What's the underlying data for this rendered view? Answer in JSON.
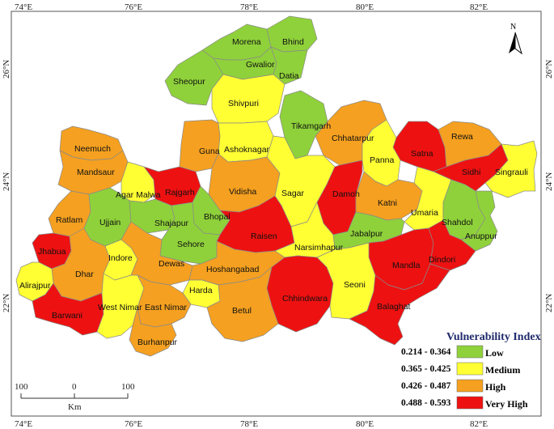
{
  "colors": {
    "low": "#8fd13a",
    "medium": "#ffff33",
    "high": "#f5a020",
    "very_high": "#ee1111"
  },
  "frame": {
    "top_ticks": [
      "74°E",
      "76°E",
      "78°E",
      "80°E",
      "82°E"
    ],
    "bottom_ticks": [
      "74°E",
      "76°E",
      "78°E",
      "80°E",
      "82°E"
    ],
    "left_ticks": [
      "26°N",
      "24°N",
      "22°N"
    ],
    "right_ticks": [
      "26°N",
      "24°N",
      "22°N"
    ]
  },
  "north_arrow": {
    "label": "N"
  },
  "legend": {
    "title": "Vulnerability Index",
    "items": [
      {
        "range": "0.214 - 0.364",
        "class": "Low",
        "color_key": "low"
      },
      {
        "range": "0.365 - 0.425",
        "class": "Medium",
        "color_key": "medium"
      },
      {
        "range": "0.426 - 0.487",
        "class": "High",
        "color_key": "high"
      },
      {
        "range": "0.488 - 0.593",
        "class": "Very High",
        "color_key": "very_high"
      }
    ]
  },
  "scale_bar": {
    "labels": [
      "100",
      "0",
      "100"
    ],
    "unit": "Km"
  },
  "districts": [
    {
      "name": "Morena",
      "class": "low"
    },
    {
      "name": "Bhind",
      "class": "low"
    },
    {
      "name": "Gwalior",
      "class": "low"
    },
    {
      "name": "Datia",
      "class": "low"
    },
    {
      "name": "Sheopur",
      "class": "low"
    },
    {
      "name": "Shivpuri",
      "class": "medium"
    },
    {
      "name": "Tikamgarh",
      "class": "low"
    },
    {
      "name": "Chhatarpur",
      "class": "high"
    },
    {
      "name": "Satna",
      "class": "very_high"
    },
    {
      "name": "Rewa",
      "class": "high"
    },
    {
      "name": "Sidhi",
      "class": "very_high"
    },
    {
      "name": "Singrauli",
      "class": "medium"
    },
    {
      "name": "Panna",
      "class": "medium"
    },
    {
      "name": "Neemuch",
      "class": "high"
    },
    {
      "name": "Mandsaur",
      "class": "high"
    },
    {
      "name": "Guna",
      "class": "high"
    },
    {
      "name": "Ashoknagar",
      "class": "medium"
    },
    {
      "name": "Agar Malwa",
      "class": "medium"
    },
    {
      "name": "Rajgarh",
      "class": "very_high"
    },
    {
      "name": "Vidisha",
      "class": "high"
    },
    {
      "name": "Sagar",
      "class": "medium"
    },
    {
      "name": "Damoh",
      "class": "very_high"
    },
    {
      "name": "Katni",
      "class": "high"
    },
    {
      "name": "Umaria",
      "class": "medium"
    },
    {
      "name": "Shahdol",
      "class": "low"
    },
    {
      "name": "Anuppur",
      "class": "low"
    },
    {
      "name": "Ratlam",
      "class": "high"
    },
    {
      "name": "Ujjain",
      "class": "low"
    },
    {
      "name": "Shajapur",
      "class": "low"
    },
    {
      "name": "Bhopal",
      "class": "low"
    },
    {
      "name": "Raisen",
      "class": "very_high"
    },
    {
      "name": "Sehore",
      "class": "low"
    },
    {
      "name": "Jabalpur",
      "class": "low"
    },
    {
      "name": "Narsimhapur",
      "class": "medium"
    },
    {
      "name": "Jhabua",
      "class": "very_high"
    },
    {
      "name": "Dhar",
      "class": "high"
    },
    {
      "name": "Indore",
      "class": "medium"
    },
    {
      "name": "Dewas",
      "class": "high"
    },
    {
      "name": "Hoshangabad",
      "class": "high"
    },
    {
      "name": "Mandla",
      "class": "very_high"
    },
    {
      "name": "Dindori",
      "class": "very_high"
    },
    {
      "name": "Alirajpur",
      "class": "medium"
    },
    {
      "name": "Harda",
      "class": "medium"
    },
    {
      "name": "Chhindwara",
      "class": "very_high"
    },
    {
      "name": "Seoni",
      "class": "medium"
    },
    {
      "name": "Barwani",
      "class": "very_high"
    },
    {
      "name": "West Nimar",
      "class": "medium"
    },
    {
      "name": "East Nimar",
      "class": "high"
    },
    {
      "name": "Betul",
      "class": "high"
    },
    {
      "name": "Balaghat",
      "class": "very_high"
    },
    {
      "name": "Burhanpur",
      "class": "high"
    }
  ]
}
